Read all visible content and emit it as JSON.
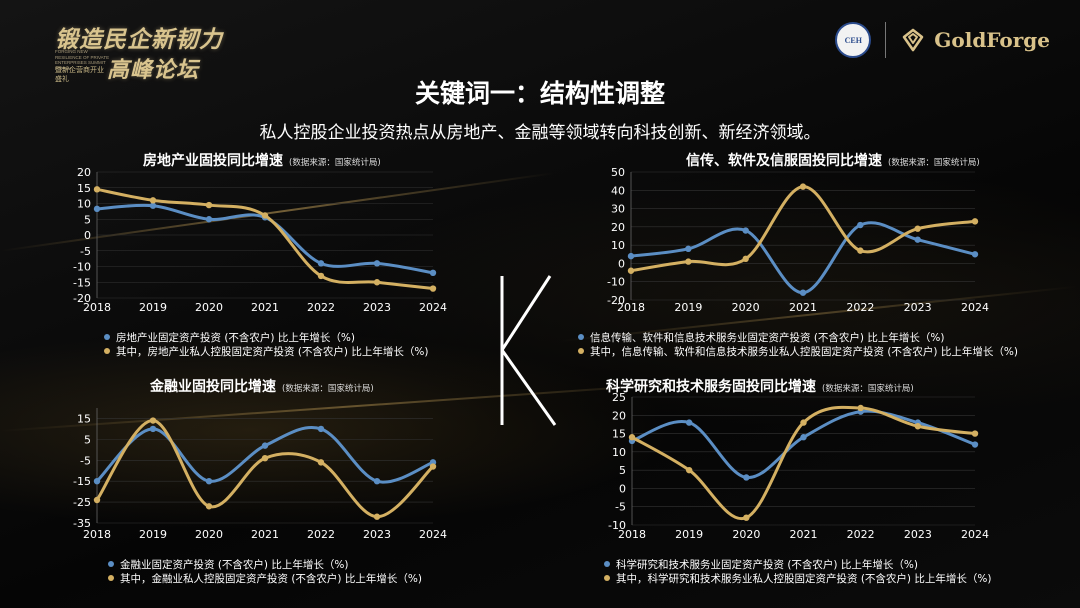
{
  "brand": {
    "left_line1": "锻造民企新韧力",
    "left_line2": "高峰论坛",
    "left_en": "FORGING NEW RESILIENCE OF PRIVATE ENTERPRISES SUMMIT FORUM",
    "left_sub": "暨新企营商开业盛礼",
    "seal_text": "CEH",
    "right_name": "GoldForge"
  },
  "header": {
    "title": "关键词一：结构性调整",
    "subtitle": "私人控股企业投资热点从房地产、金融等领域转向科技创新、新经济领域。"
  },
  "center_mark": "K",
  "colors": {
    "blue": "#5b8ec4",
    "gold": "#d4b062",
    "grid": "#333333",
    "axis_text": "#ffffff"
  },
  "chart_data": [
    {
      "type": "line",
      "title": "房地产业固投同比增速",
      "source": "(数据来源：国家统计局)",
      "categories": [
        "2018",
        "2019",
        "2020",
        "2021",
        "2022",
        "2023",
        "2024"
      ],
      "ylim": [
        -20,
        20
      ],
      "yticks": [
        "20",
        "15",
        "10",
        "5",
        "0",
        "-5",
        "-10",
        "-15",
        "-20"
      ],
      "series": [
        {
          "name": "房地产业固定资产投资 (不含农户) 比上年增长（%)",
          "color": "#5b8ec4",
          "values": [
            8.3,
            9.3,
            5.0,
            5.6,
            -9.0,
            -9.0,
            -12.0
          ]
        },
        {
          "name": "其中，房地产业私人控股固定资产投资 (不含农户) 比上年增长（%)",
          "color": "#d4b062",
          "values": [
            14.5,
            11.0,
            9.5,
            6.2,
            -13.0,
            -15.0,
            -17.0
          ]
        }
      ]
    },
    {
      "type": "line",
      "title": "信传、软件及信服固投同比增速",
      "source": "(数据来源：国家统计局)",
      "categories": [
        "2018",
        "2019",
        "2020",
        "2021",
        "2022",
        "2023",
        "2024"
      ],
      "ylim": [
        -20,
        50
      ],
      "yticks": [
        "50",
        "40",
        "30",
        "20",
        "10",
        "0",
        "-10",
        "-20"
      ],
      "series": [
        {
          "name": "信息传输、软件和信息技术服务业固定资产投资 (不含农户) 比上年增长（%)",
          "color": "#5b8ec4",
          "values": [
            4.0,
            8.0,
            18.0,
            -16.0,
            21.0,
            13.0,
            5.0
          ]
        },
        {
          "name": "其中，信息传输、软件和信息技术服务业私人控股固定资产投资 (不含农户) 比上年增长（%)",
          "color": "#d4b062",
          "values": [
            -4.0,
            1.0,
            2.5,
            42.0,
            7.0,
            19.0,
            23.0
          ]
        }
      ]
    },
    {
      "type": "line",
      "title": "金融业固投同比增速",
      "source": "(数据来源：国家统计局)",
      "categories": [
        "2018",
        "2019",
        "2020",
        "2021",
        "2022",
        "2023",
        "2024"
      ],
      "ylim": [
        -35,
        20
      ],
      "yticks": [
        "15",
        "5",
        "-5",
        "-15",
        "-25",
        "-35"
      ],
      "series": [
        {
          "name": "金融业固定资产投资 (不含农户) 比上年增长（%)",
          "color": "#5b8ec4",
          "values": [
            -15.0,
            10.0,
            -15.0,
            2.0,
            10.0,
            -15.0,
            -6.0
          ]
        },
        {
          "name": "其中，金融业私人控股固定资产投资 (不含农户) 比上年增长（%)",
          "color": "#d4b062",
          "values": [
            -24.0,
            14.0,
            -27.0,
            -4.0,
            -6.0,
            -32.0,
            -8.0
          ]
        }
      ]
    },
    {
      "type": "line",
      "title": "科学研究和技术服务固投同比增速",
      "source": "(数据来源：国家统计局)",
      "categories": [
        "2018",
        "2019",
        "2020",
        "2021",
        "2022",
        "2023",
        "2024"
      ],
      "ylim": [
        -10,
        25
      ],
      "yticks": [
        "25",
        "20",
        "15",
        "10",
        "5",
        "0",
        "-5",
        "-10"
      ],
      "series": [
        {
          "name": "科学研究和技术服务业固定资产投资 (不含农户) 比上年增长（%)",
          "color": "#5b8ec4",
          "values": [
            13.0,
            18.0,
            3.0,
            14.0,
            21.0,
            18.0,
            12.0
          ]
        },
        {
          "name": "其中，科学研究和技术服务业私人控股固定资产投资 (不含农户) 比上年增长（%)",
          "color": "#d4b062",
          "values": [
            14.0,
            5.0,
            -8.0,
            18.0,
            22.0,
            17.0,
            15.0
          ]
        }
      ]
    }
  ]
}
